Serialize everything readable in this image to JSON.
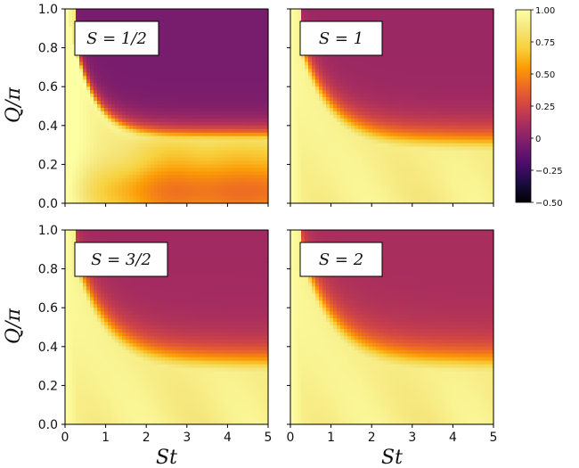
{
  "chart_data": {
    "type": "heatmap",
    "xlabel": "St",
    "ylabel": "Q/π",
    "xlim": [
      0,
      5
    ],
    "ylim": [
      0,
      1
    ],
    "x_ticks": [
      "0",
      "1",
      "2",
      "3",
      "4",
      "5"
    ],
    "y_ticks": [
      "0.0",
      "0.2",
      "0.4",
      "0.6",
      "0.8",
      "1.0"
    ],
    "colorbar": {
      "range": [
        -0.5,
        1.0
      ],
      "ticks": [
        "1.00",
        "0.75",
        "0.50",
        "0.25",
        "0",
        "−0.25",
        "−0.50"
      ],
      "tick_values": [
        1.0,
        0.75,
        0.5,
        0.25,
        0,
        -0.25,
        -0.5
      ],
      "colormap": "inferno"
    },
    "panels": [
      {
        "label": "S = 1/2",
        "S": 0.5,
        "x_sample": [
          0,
          1,
          2,
          3,
          4,
          5
        ],
        "y_sample": [
          0,
          0.2,
          0.4,
          0.6,
          0.8,
          1.0
        ],
        "z_sample": [
          [
            1.0,
            1.0,
            0.95,
            0.92,
            0.9,
            0.92
          ],
          [
            1.0,
            0.95,
            0.78,
            0.72,
            0.7,
            0.72
          ],
          [
            1.0,
            0.95,
            0.8,
            0.75,
            0.78,
            0.78
          ],
          [
            1.0,
            0.6,
            0.1,
            0.0,
            0.05,
            0.1
          ],
          [
            1.0,
            0.35,
            -0.05,
            0.0,
            0.05,
            0.05
          ],
          [
            1.0,
            0.25,
            -0.05,
            0.0,
            0.05,
            0.05
          ]
        ]
      },
      {
        "label": "S = 1",
        "S": 1.0,
        "x_sample": [
          0,
          1,
          2,
          3,
          4,
          5
        ],
        "y_sample": [
          0,
          0.2,
          0.4,
          0.6,
          0.8,
          1.0
        ],
        "z_sample": [
          [
            1.0,
            0.95,
            0.9,
            0.88,
            0.85,
            0.83
          ],
          [
            1.0,
            0.95,
            0.88,
            0.85,
            0.83,
            0.82
          ],
          [
            1.0,
            0.75,
            0.45,
            0.3,
            0.22,
            0.2
          ],
          [
            1.0,
            0.55,
            0.25,
            0.15,
            0.1,
            0.08
          ],
          [
            1.0,
            0.5,
            0.2,
            0.12,
            0.08,
            0.06
          ],
          [
            1.0,
            0.45,
            0.18,
            0.1,
            0.07,
            0.06
          ]
        ]
      },
      {
        "label": "S = 3/2",
        "S": 1.5,
        "x_sample": [
          0,
          1,
          2,
          3,
          4,
          5
        ],
        "y_sample": [
          0,
          0.2,
          0.4,
          0.6,
          0.8,
          1.0
        ],
        "z_sample": [
          [
            1.0,
            0.95,
            0.9,
            0.88,
            0.85,
            0.85
          ],
          [
            1.0,
            0.95,
            0.9,
            0.88,
            0.88,
            0.88
          ],
          [
            1.0,
            0.75,
            0.45,
            0.32,
            0.28,
            0.25
          ],
          [
            1.0,
            0.58,
            0.28,
            0.18,
            0.13,
            0.1
          ],
          [
            1.0,
            0.52,
            0.22,
            0.14,
            0.1,
            0.08
          ],
          [
            1.0,
            0.5,
            0.2,
            0.13,
            0.1,
            0.08
          ]
        ]
      },
      {
        "label": "S = 2",
        "S": 2.0,
        "x_sample": [
          0,
          1,
          2,
          3,
          4,
          5
        ],
        "y_sample": [
          0,
          0.2,
          0.4,
          0.6,
          0.8,
          1.0
        ],
        "z_sample": [
          [
            1.0,
            0.95,
            0.92,
            0.9,
            0.9,
            0.9
          ],
          [
            1.0,
            0.95,
            0.92,
            0.9,
            0.9,
            0.9
          ],
          [
            1.0,
            0.78,
            0.5,
            0.38,
            0.32,
            0.3
          ],
          [
            1.0,
            0.62,
            0.35,
            0.25,
            0.2,
            0.18
          ],
          [
            1.0,
            0.58,
            0.3,
            0.22,
            0.18,
            0.15
          ],
          [
            1.0,
            0.55,
            0.28,
            0.2,
            0.17,
            0.15
          ]
        ]
      }
    ]
  }
}
